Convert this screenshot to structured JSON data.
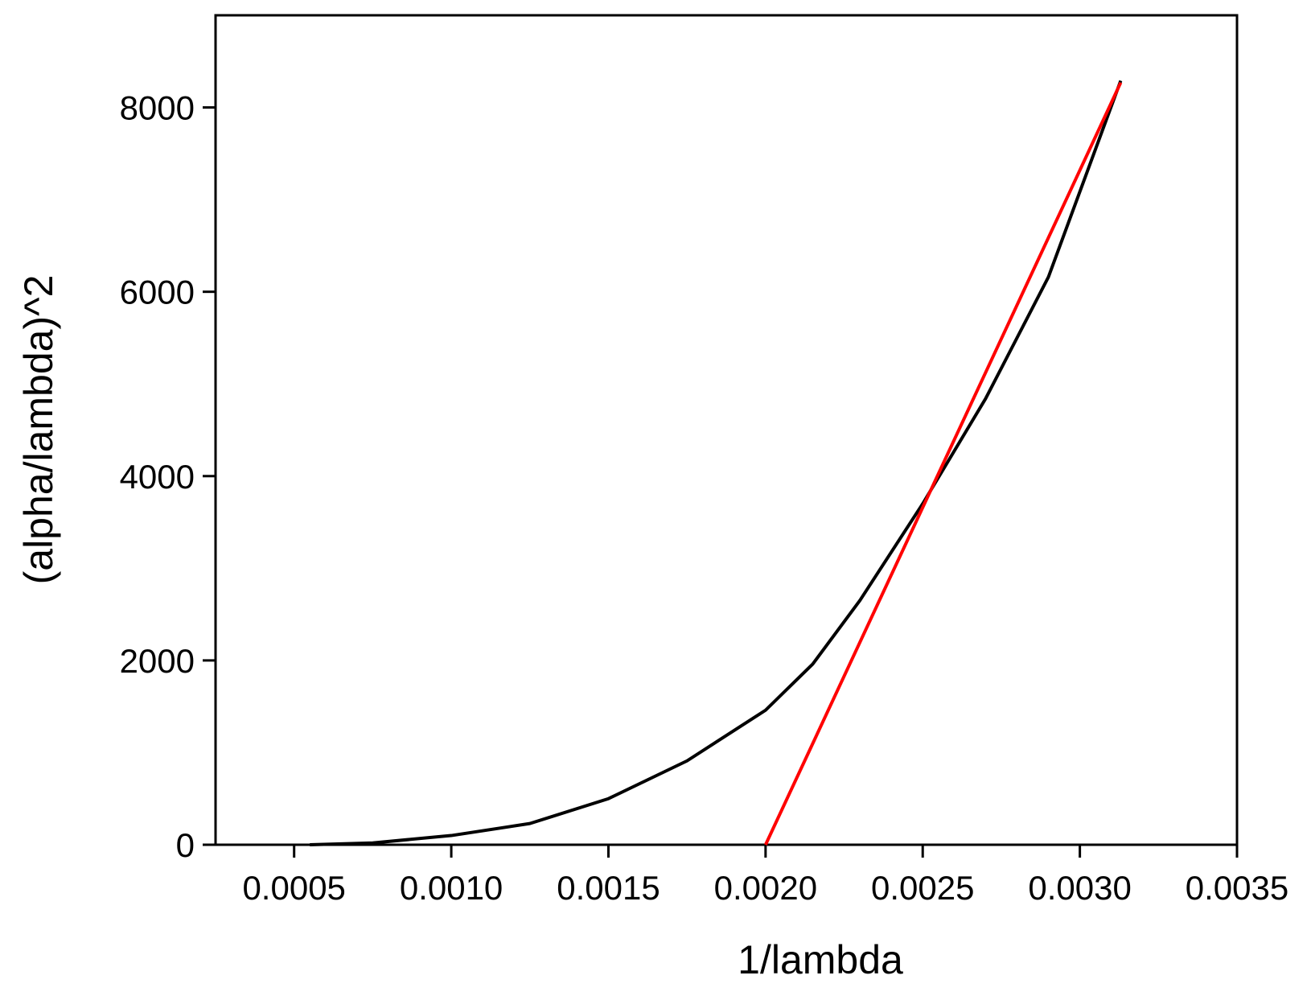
{
  "chart_data": {
    "type": "line",
    "x_label": "1/lambda",
    "y_label": "(alpha/lambda)^2",
    "xlim": [
      0.00025,
      0.0035
    ],
    "ylim": [
      0,
      9000
    ],
    "xticks": [
      {
        "value": 0.0005,
        "label": "0.0005"
      },
      {
        "value": 0.001,
        "label": "0.0010"
      },
      {
        "value": 0.0015,
        "label": "0.0015"
      },
      {
        "value": 0.002,
        "label": "0.0020"
      },
      {
        "value": 0.0025,
        "label": "0.0025"
      },
      {
        "value": 0.003,
        "label": "0.0030"
      },
      {
        "value": 0.0035,
        "label": "0.0035"
      }
    ],
    "yticks": [
      0,
      2000,
      4000,
      6000,
      8000
    ],
    "series": [
      {
        "color": "#000000",
        "x": [
          0.00055,
          0.00075,
          0.001,
          0.00125,
          0.0015,
          0.00175,
          0.002,
          0.00215,
          0.0023,
          0.0025,
          0.0027,
          0.0029,
          0.00313
        ],
        "values": [
          0,
          20,
          100,
          230,
          500,
          910,
          1460,
          1960,
          2650,
          3700,
          4840,
          6160,
          8290
        ]
      },
      {
        "color": "#ff0000",
        "x": [
          0.002,
          0.00313
        ],
        "values": [
          0,
          8270
        ]
      }
    ]
  }
}
